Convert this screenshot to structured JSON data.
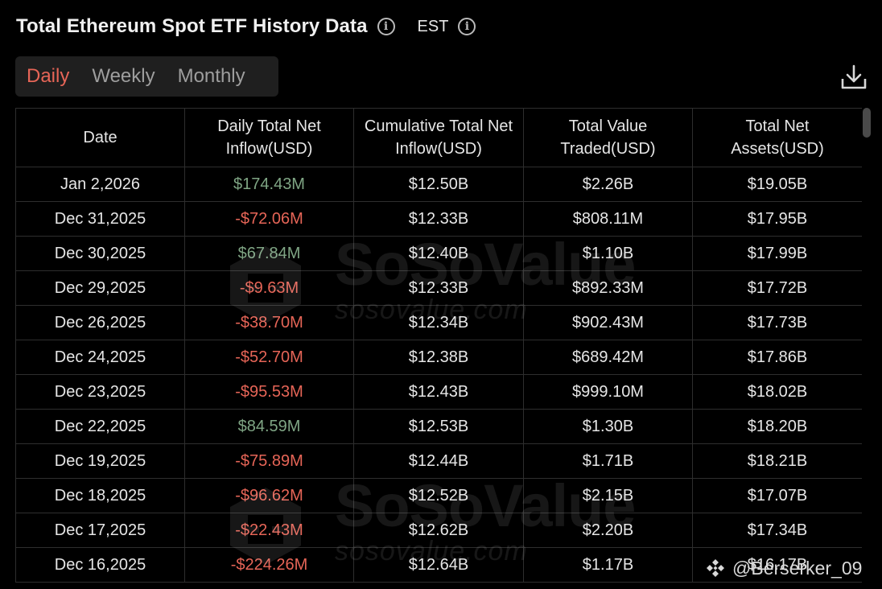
{
  "header": {
    "title": "Total Ethereum Spot ETF History Data",
    "timezone": "EST"
  },
  "tabs": [
    {
      "label": "Daily",
      "active": true
    },
    {
      "label": "Weekly",
      "active": false
    },
    {
      "label": "Monthly",
      "active": false
    }
  ],
  "table": {
    "columns": [
      "Date",
      "Daily Total Net Inflow(USD)",
      "Cumulative Total Net Inflow(USD)",
      "Total Value Traded(USD)",
      "Total Net Assets(USD)"
    ],
    "rows": [
      [
        "Jan 2,2026",
        "$174.43M",
        "$12.50B",
        "$2.26B",
        "$19.05B"
      ],
      [
        "Dec 31,2025",
        "-$72.06M",
        "$12.33B",
        "$808.11M",
        "$17.95B"
      ],
      [
        "Dec 30,2025",
        "$67.84M",
        "$12.40B",
        "$1.10B",
        "$17.99B"
      ],
      [
        "Dec 29,2025",
        "-$9.63M",
        "$12.33B",
        "$892.33M",
        "$17.72B"
      ],
      [
        "Dec 26,2025",
        "-$38.70M",
        "$12.34B",
        "$902.43M",
        "$17.73B"
      ],
      [
        "Dec 24,2025",
        "-$52.70M",
        "$12.38B",
        "$689.42M",
        "$17.86B"
      ],
      [
        "Dec 23,2025",
        "-$95.53M",
        "$12.43B",
        "$999.10M",
        "$18.02B"
      ],
      [
        "Dec 22,2025",
        "$84.59M",
        "$12.53B",
        "$1.30B",
        "$18.20B"
      ],
      [
        "Dec 19,2025",
        "-$75.89M",
        "$12.44B",
        "$1.71B",
        "$18.21B"
      ],
      [
        "Dec 18,2025",
        "-$96.62M",
        "$12.52B",
        "$2.15B",
        "$17.07B"
      ],
      [
        "Dec 17,2025",
        "-$22.43M",
        "$12.62B",
        "$2.20B",
        "$17.34B"
      ],
      [
        "Dec 16,2025",
        "-$224.26M",
        "$12.64B",
        "$1.17B",
        "$16.17B"
      ]
    ]
  },
  "watermark": {
    "brand": "SoSoValue",
    "url": "sosovalue.com"
  },
  "credit": {
    "handle": "@Berserker_09",
    "icon": "binance-square-icon"
  },
  "colors": {
    "positive": "#7fa584",
    "negative": "#e66557",
    "active_tab": "#e66557"
  }
}
